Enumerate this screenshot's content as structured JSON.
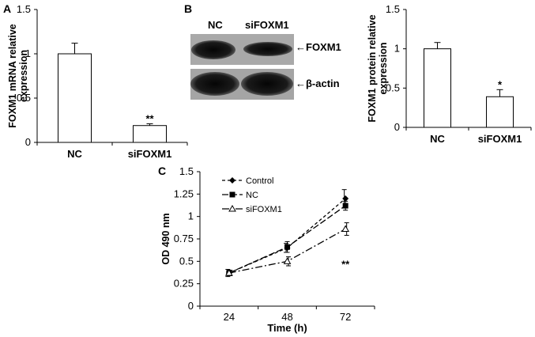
{
  "panels": {
    "A": "A",
    "B": "B",
    "C": "C"
  },
  "blot": {
    "lane_labels": [
      "NC",
      "siFOXM1"
    ],
    "band_labels": [
      "←FOXM1",
      "←β-actin"
    ]
  },
  "chart_data": [
    {
      "id": "A",
      "type": "bar",
      "categories": [
        "NC",
        "siFOXM1"
      ],
      "values": [
        1.0,
        0.19
      ],
      "errors": [
        0.12,
        0.02
      ],
      "significance": [
        "",
        "**"
      ],
      "ylabel_lines": [
        "FOXM1 mRNA relative",
        "expression"
      ],
      "ylim": [
        0,
        1.5
      ],
      "yticks": [
        0,
        0.5,
        1,
        1.5
      ],
      "ytick_labels": [
        "0",
        "0.5",
        "1",
        "1.5"
      ]
    },
    {
      "id": "B",
      "type": "bar",
      "categories": [
        "NC",
        "siFOXM1"
      ],
      "values": [
        1.0,
        0.39
      ],
      "errors": [
        0.08,
        0.09
      ],
      "significance": [
        "",
        "*"
      ],
      "ylabel_lines": [
        "FOXM1 protein relative",
        "expression"
      ],
      "ylim": [
        0,
        1.5
      ],
      "yticks": [
        0,
        0.5,
        1,
        1.5
      ],
      "ytick_labels": [
        "0",
        "0.5",
        "1",
        "1.5"
      ]
    },
    {
      "id": "C",
      "type": "line",
      "x": [
        24,
        48,
        72
      ],
      "xtick_labels": [
        "24",
        "48",
        "72"
      ],
      "xlabel": "Time (h)",
      "ylabel": "OD 490 nm",
      "ylim": [
        0,
        1.5
      ],
      "yticks": [
        0,
        0.25,
        0.5,
        0.75,
        1,
        1.25,
        1.5
      ],
      "ytick_labels": [
        "0",
        "0.25",
        "0.5",
        "0.75",
        "1",
        "1.25",
        "1.5"
      ],
      "legend_placement": "top-left",
      "series": [
        {
          "name": "Control",
          "values": [
            0.37,
            0.65,
            1.2
          ],
          "errors": [
            0.04,
            0.05,
            0.1
          ],
          "marker": "diamond",
          "dash": "4,3"
        },
        {
          "name": "NC",
          "values": [
            0.37,
            0.66,
            1.12
          ],
          "errors": [
            0.03,
            0.06,
            0.05
          ],
          "marker": "square",
          "dash": "8,3"
        },
        {
          "name": "siFOXM1",
          "values": [
            0.37,
            0.5,
            0.86
          ],
          "errors": [
            0.03,
            0.05,
            0.07
          ],
          "marker": "triangle-open",
          "dash": "9,3,2,3"
        }
      ],
      "annotation": "**"
    }
  ]
}
